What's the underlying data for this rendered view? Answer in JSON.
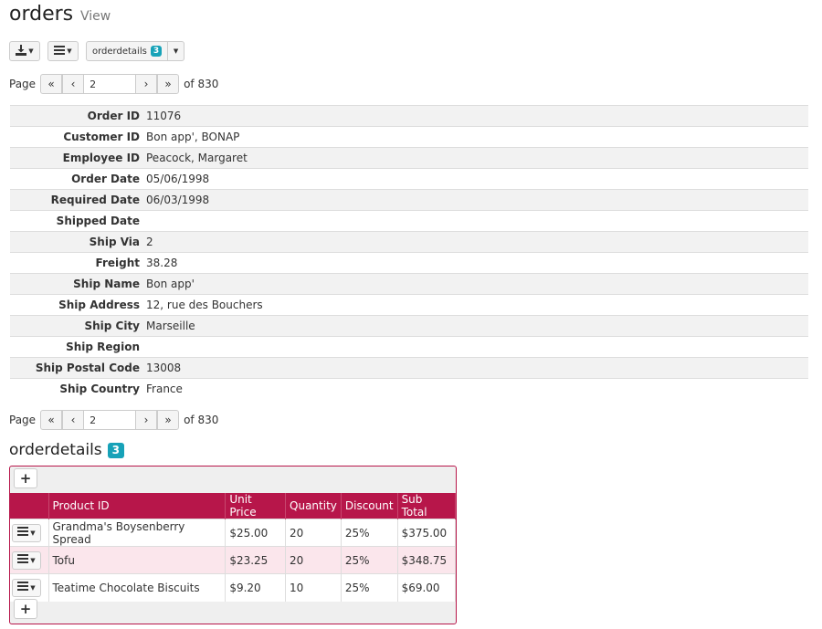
{
  "page": {
    "title": "orders",
    "subtitle": "View"
  },
  "toolbar": {
    "export_icon": "download-icon",
    "menu_icon": "hamburger-icon",
    "detail_button_label": "orderdetails",
    "detail_badge": "3"
  },
  "pager": {
    "label": "Page",
    "current_page": "2",
    "of_label": "of 830"
  },
  "fields": [
    {
      "label": "Order ID",
      "value": "11076"
    },
    {
      "label": "Customer ID",
      "value": "Bon app', BONAP"
    },
    {
      "label": "Employee ID",
      "value": "Peacock, Margaret"
    },
    {
      "label": "Order Date",
      "value": "05/06/1998"
    },
    {
      "label": "Required Date",
      "value": "06/03/1998"
    },
    {
      "label": "Shipped Date",
      "value": ""
    },
    {
      "label": "Ship Via",
      "value": "2"
    },
    {
      "label": "Freight",
      "value": "38.28"
    },
    {
      "label": "Ship Name",
      "value": "Bon app'"
    },
    {
      "label": "Ship Address",
      "value": "12, rue des Bouchers"
    },
    {
      "label": "Ship City",
      "value": "Marseille"
    },
    {
      "label": "Ship Region",
      "value": ""
    },
    {
      "label": "Ship Postal Code",
      "value": "13008"
    },
    {
      "label": "Ship Country",
      "value": "France"
    }
  ],
  "orderdetails": {
    "title": "orderdetails",
    "count": "3",
    "add_label": "+",
    "columns": [
      "Product ID",
      "Unit Price",
      "Quantity",
      "Discount",
      "Sub Total"
    ],
    "rows": [
      [
        "Grandma's Boysenberry Spread",
        "$25.00",
        "20",
        "25%",
        "$375.00"
      ],
      [
        "Tofu",
        "$23.25",
        "20",
        "25%",
        "$348.75"
      ],
      [
        "Teatime Chocolate Biscuits",
        "$9.20",
        "10",
        "25%",
        "$69.00"
      ]
    ]
  },
  "colors": {
    "accent": "#b7164a",
    "badge": "#17a2b8",
    "row_alt": "#fbe6ec"
  }
}
